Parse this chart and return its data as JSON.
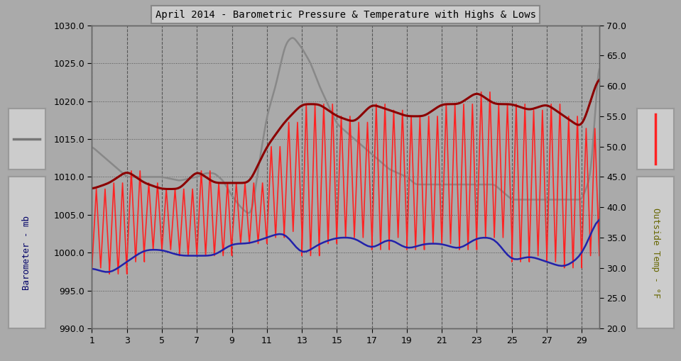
{
  "title": "April 2014 - Barometric Pressure & Temperature with Highs & Lows",
  "bg_color": "#aaaaaa",
  "plot_bg_color": "#aaaaaa",
  "left_label": "Barometer - mb",
  "right_label": "Outside Temp - °F",
  "ylim_left": [
    990.0,
    1030.0
  ],
  "ylim_right": [
    20.0,
    70.0
  ],
  "yticks_left": [
    990.0,
    995.0,
    1000.0,
    1005.0,
    1010.0,
    1015.0,
    1020.0,
    1025.0,
    1030.0
  ],
  "yticks_right": [
    20.0,
    25.0,
    30.0,
    35.0,
    40.0,
    45.0,
    50.0,
    55.0,
    60.0,
    65.0,
    70.0
  ],
  "xlim": [
    1,
    30
  ],
  "xticks": [
    1,
    3,
    5,
    7,
    9,
    11,
    13,
    15,
    17,
    19,
    21,
    23,
    25,
    27,
    29
  ],
  "baro_color": "#888888",
  "temp_high_color": "#8B0000",
  "temp_range_color": "#FF3333",
  "temp_low_color": "#1a1aaa",
  "temp_scale_low_mb": 990.0,
  "temp_scale_high_mb": 1030.0,
  "temp_scale_low_f": 20.0,
  "temp_scale_high_f": 70.0,
  "baro_days": [
    1,
    1.5,
    2,
    2.5,
    3,
    3.5,
    4,
    4.5,
    5,
    5.5,
    6,
    6.5,
    7,
    7.5,
    8,
    8.5,
    9,
    9.5,
    10,
    10.5,
    11,
    11.5,
    12,
    12.5,
    13,
    13.5,
    14,
    14.5,
    15,
    15.5,
    16,
    16.5,
    17,
    17.5,
    18,
    18.5,
    19,
    19.5,
    20,
    20.5,
    21,
    21.5,
    22,
    22.5,
    23,
    23.5,
    24,
    24.5,
    25,
    25.5,
    26,
    26.5,
    27,
    27.5,
    28,
    28.5,
    29,
    29.5,
    30
  ],
  "baro_mb": [
    1014,
    1013,
    1012,
    1011,
    1010,
    1010,
    1010,
    1010,
    1010,
    1010,
    1009,
    1009,
    1009,
    1010,
    1010,
    1010,
    1010,
    1010,
    1009,
    1010,
    1014,
    1018,
    1023,
    1026,
    1028,
    1028,
    1027,
    1025,
    1023,
    1021,
    1019,
    1017,
    1015,
    1014,
    1012,
    1011,
    1010,
    1010,
    1009,
    1009,
    1008,
    1008,
    1007,
    1007,
    1007,
    1007,
    1007,
    1007,
    1007,
    1007,
    1007,
    1007,
    1007,
    1007,
    1007,
    1007,
    1007,
    1007,
    1007
  ],
  "temp_high_days": [
    1,
    2,
    3,
    4,
    5,
    6,
    7,
    8,
    9,
    10,
    11,
    12,
    13,
    14,
    15,
    16,
    17,
    18,
    19,
    20,
    21,
    22,
    23,
    24,
    25,
    26,
    27,
    28,
    29,
    30
  ],
  "temp_high_f": [
    43,
    44,
    46,
    44,
    43,
    43,
    46,
    44,
    44,
    44,
    50,
    54,
    57,
    57,
    55,
    54,
    57,
    56,
    55,
    55,
    57,
    57,
    59,
    57,
    57,
    56,
    57,
    55,
    53,
    62
  ],
  "temp_low_days": [
    1,
    2,
    3,
    4,
    5,
    6,
    7,
    8,
    9,
    10,
    11,
    12,
    13,
    14,
    15,
    16,
    17,
    18,
    19,
    20,
    21,
    22,
    23,
    24,
    25,
    26,
    27,
    28,
    29,
    30
  ],
  "temp_low_f": [
    30,
    29,
    31,
    33,
    33,
    32,
    32,
    32,
    34,
    34,
    35,
    36,
    32,
    34,
    35,
    35,
    33,
    35,
    33,
    34,
    34,
    33,
    35,
    35,
    31,
    32,
    31,
    30,
    32,
    39
  ],
  "baro_detail_days": [
    1,
    1.1,
    1.2,
    1.3,
    1.4,
    1.5,
    1.6,
    1.7,
    1.8,
    1.9,
    2,
    2.1,
    2.2,
    2.3,
    2.4,
    2.5,
    2.6,
    2.7,
    2.8,
    2.9,
    3,
    3.1,
    3.2,
    3.3,
    3.4,
    3.5,
    3.6,
    3.7,
    3.8,
    3.9,
    4,
    4.1,
    4.2,
    4.3,
    4.4,
    4.5,
    4.6,
    4.7,
    4.8,
    4.9,
    5,
    5.1,
    5.2,
    5.3,
    5.4,
    5.5,
    5.6,
    5.7,
    5.8,
    5.9,
    6,
    6.1,
    6.2,
    6.3,
    6.4,
    6.5,
    6.6,
    6.7,
    6.8,
    6.9,
    7,
    7.1,
    7.2,
    7.3,
    7.4,
    7.5,
    7.6,
    7.7,
    7.8,
    7.9,
    8,
    8.1,
    8.2,
    8.3,
    8.4,
    8.5,
    8.6,
    8.7,
    8.8,
    8.9,
    9,
    9.1,
    9.2,
    9.3,
    9.4,
    9.5,
    9.6,
    9.7,
    9.8,
    9.9,
    10,
    10.1,
    10.2,
    10.3,
    10.4,
    10.5,
    10.6,
    10.7,
    10.8,
    10.9,
    11,
    11.1,
    11.2,
    11.3,
    11.4,
    11.5,
    11.6,
    11.7,
    11.8,
    11.9,
    12,
    12.1,
    12.2,
    12.3,
    12.4,
    12.5,
    12.6,
    12.7,
    12.8,
    12.9,
    13,
    13.1,
    13.2,
    13.3,
    13.4,
    13.5,
    13.6,
    13.7,
    13.8,
    13.9,
    14,
    14.1,
    14.2,
    14.3,
    14.4,
    14.5,
    14.6,
    14.7,
    14.8,
    14.9,
    15,
    15.1,
    15.2,
    15.3,
    15.4,
    15.5,
    15.6,
    15.7,
    15.8,
    15.9,
    16,
    16.1,
    16.2,
    16.3,
    16.4,
    16.5,
    16.6,
    16.7,
    16.8,
    16.9,
    17,
    17.1,
    17.2,
    17.3,
    17.4,
    17.5,
    17.6,
    17.7,
    17.8,
    17.9,
    18,
    18.1,
    18.2,
    18.3,
    18.4,
    18.5,
    18.6,
    18.7,
    18.8,
    18.9,
    19,
    19.1,
    19.2,
    19.3,
    19.4,
    19.5,
    19.6,
    19.7,
    19.8,
    19.9,
    20,
    20.1,
    20.2,
    20.3,
    20.4,
    20.5,
    20.6,
    20.7,
    20.8,
    20.9,
    21,
    21.1,
    21.2,
    21.3,
    21.4,
    21.5,
    21.6,
    21.7,
    21.8,
    21.9,
    22,
    22.1,
    22.2,
    22.3,
    22.4,
    22.5,
    22.6,
    22.7,
    22.8,
    22.9,
    23,
    23.1,
    23.2,
    23.3,
    23.4,
    23.5,
    23.6,
    23.7,
    23.8,
    23.9,
    24,
    24.1,
    24.2,
    24.3,
    24.4,
    24.5,
    24.6,
    24.7,
    24.8,
    24.9,
    25,
    25.1,
    25.2,
    25.3,
    25.4,
    25.5,
    25.6,
    25.7,
    25.8,
    25.9,
    26,
    26.1,
    26.2,
    26.3,
    26.4,
    26.5,
    26.6,
    26.7,
    26.8,
    26.9,
    27,
    27.1,
    27.2,
    27.3,
    27.4,
    27.5,
    27.6,
    27.7,
    27.8,
    27.9,
    28,
    28.1,
    28.2,
    28.3,
    28.4,
    28.5,
    28.6,
    28.7,
    28.8,
    28.9,
    29,
    29.1,
    29.2,
    29.3,
    29.4,
    29.5,
    29.6,
    29.7,
    29.8,
    29.9,
    30
  ],
  "baro_detail_mb": [
    1014,
    1014,
    1013.5,
    1013,
    1012.5,
    1012,
    1011.5,
    1011,
    1010.5,
    1010.2,
    1010,
    1010,
    1010,
    1010,
    1010,
    1010,
    1010,
    1010,
    1010,
    1010,
    1010,
    1010,
    1010,
    1010,
    1010,
    1009.5,
    1009.5,
    1010,
    1010.2,
    1010,
    1010,
    1010,
    1010,
    1010,
    1010,
    1010,
    1010,
    1010,
    1010,
    1010,
    1010,
    1010,
    1010,
    1010,
    1010,
    1010,
    1010,
    1010,
    1010,
    1010,
    1009.5,
    1009,
    1009,
    1009,
    1009,
    1009,
    1009,
    1009,
    1009,
    1009.5,
    1010,
    1010,
    1010.5,
    1010.5,
    1010.5,
    1010,
    1010,
    1010,
    1009.5,
    1009,
    1009,
    1009,
    1009,
    1009.5,
    1009.5,
    1009.5,
    1009,
    1008.5,
    1008,
    1007.5,
    1007,
    1007,
    1007,
    1007.5,
    1008.5,
    1010,
    1012,
    1014,
    1016,
    1018,
    1020,
    1022,
    1023,
    1024.5,
    1026,
    1027,
    1028,
    1028,
    1028,
    1027.5,
    1027,
    1026,
    1025,
    1024,
    1023,
    1022,
    1021,
    1020,
    1019,
    1018,
    1017,
    1016.5,
    1016,
    1015.5,
    1015,
    1014.5,
    1014,
    1013.5,
    1013,
    1012.5,
    1012,
    1011.5,
    1011,
    1010.5,
    1010,
    1010,
    1010,
    1009.5,
    1009,
    1009,
    1009,
    1009,
    1009,
    1009,
    1009,
    1009,
    1009,
    1009,
    1009,
    1009,
    1009,
    1009,
    1009,
    1009,
    1009,
    1009,
    1009,
    1009,
    1009,
    1009,
    1009,
    1009,
    1009,
    1009,
    1009,
    1009,
    1009,
    1009,
    1009,
    1009,
    1009,
    1009,
    1009,
    1009,
    1008.5,
    1008,
    1007.5,
    1007,
    1007,
    1007,
    1007,
    1007,
    1007,
    1007,
    1007,
    1007,
    1007,
    1007,
    1007,
    1007,
    1007,
    1007,
    1007,
    1007,
    1007,
    1007,
    1007,
    1007,
    1007,
    1007,
    1007,
    1007,
    1007,
    1007,
    1007,
    1007,
    1007,
    1007,
    1007,
    1007,
    1007,
    1007,
    1007,
    1007,
    1007,
    1007,
    1007,
    1007,
    1007,
    1007,
    1007,
    1007,
    1007,
    1007,
    1007,
    1007,
    1007,
    1007,
    1007,
    1007,
    1007,
    1007,
    1007,
    1007,
    1007,
    1007,
    1007,
    1007,
    1007,
    1007,
    1007,
    1007,
    1007,
    1007,
    1007,
    1007,
    1007,
    1007,
    1007,
    1007,
    1007,
    1007,
    1007,
    1007,
    1007,
    1007,
    1007,
    1007,
    1007,
    1007,
    1007,
    1007,
    1007,
    1007,
    1007,
    1007,
    1007,
    1007,
    1007,
    1007,
    1007,
    1007,
    1007,
    1007,
    1007,
    1007,
    1007,
    1007,
    1007,
    1007,
    1007,
    1007,
    1007,
    1007,
    1007,
    1007,
    1007,
    1007
  ]
}
